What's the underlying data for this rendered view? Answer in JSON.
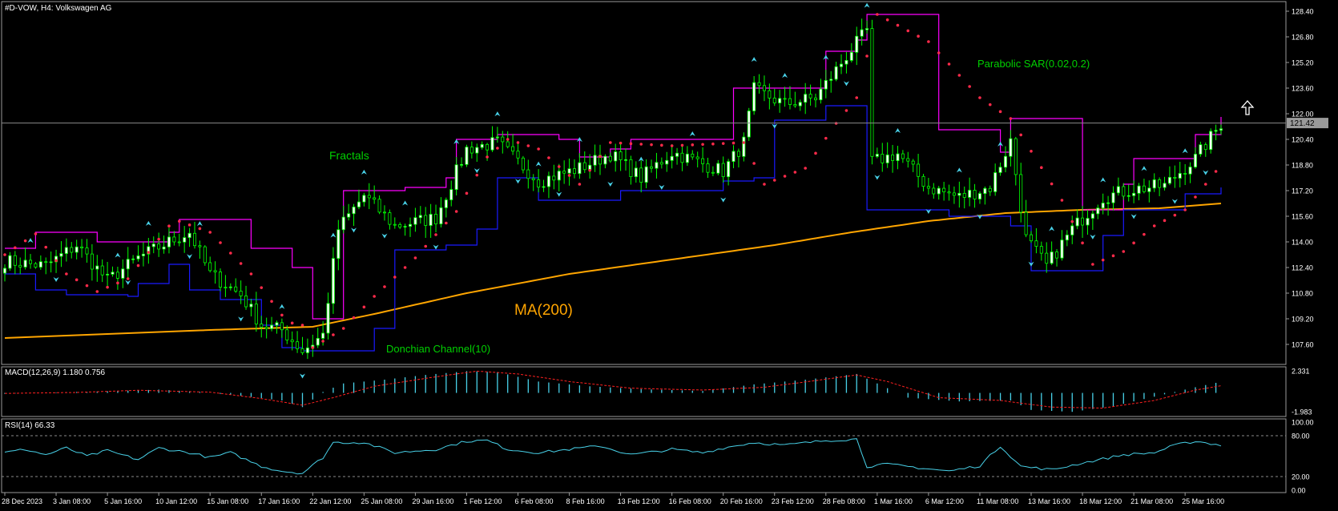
{
  "header": {
    "symbol_title": "#D-VOW, H4:  Volkswagen AG",
    "macd_title": "MACD(12,26,9) 1.180 0.756",
    "rsi_title": "RSI(14) 66.33"
  },
  "annotations": {
    "fractals": "Fractals",
    "donchian": "Donchian Channel(10)",
    "sar": "Parabolic SAR(0.02,0.2)",
    "ma": "MA(200)"
  },
  "colors": {
    "background": "#000000",
    "bull_candle": "#ffffff",
    "bear_candle": "#000000",
    "wick": "#00ff00",
    "donchian_upper": "#ff00ff",
    "donchian_lower": "#1a1aff",
    "sar": "#ff2a4a",
    "ma200": "#ffa500",
    "fractal": "#48d1e8",
    "macd_hist": "#48d1e8",
    "macd_signal": "#ff2020",
    "rsi_line": "#48d1e8",
    "label_green": "#00d000"
  },
  "chart_data": {
    "type": "candlestick",
    "price_axis": {
      "ticks": [
        "128.40",
        "126.80",
        "125.20",
        "123.60",
        "122.00",
        "120.40",
        "118.80",
        "117.20",
        "115.60",
        "114.00",
        "112.40",
        "110.80",
        "109.20",
        "107.60"
      ],
      "ylim": [
        106.2,
        128.9
      ],
      "current_price": "121.42"
    },
    "macd_axis": {
      "ticks": [
        "2.331",
        "-1.983"
      ],
      "ylim": [
        -2.4,
        2.6
      ]
    },
    "rsi_axis": {
      "ticks": [
        "100.00",
        "80.00",
        "20.00",
        "0.00"
      ],
      "levels": [
        80,
        20
      ],
      "ylim": [
        0,
        100
      ]
    },
    "x_ticks": [
      "28 Dec 2023",
      "3 Jan 08:00",
      "5 Jan 16:00",
      "10 Jan 12:00",
      "15 Jan 08:00",
      "17 Jan 16:00",
      "22 Jan 12:00",
      "25 Jan 08:00",
      "29 Jan 16:00",
      "1 Feb 12:00",
      "6 Feb 08:00",
      "8 Feb 16:00",
      "13 Feb 12:00",
      "16 Feb 08:00",
      "20 Feb 16:00",
      "23 Feb 12:00",
      "28 Feb 08:00",
      "1 Mar 16:00",
      "6 Mar 12:00",
      "11 Mar 08:00",
      "13 Mar 16:00",
      "18 Mar 12:00",
      "21 Mar 08:00",
      "25 Mar 16:00"
    ],
    "x_tick_index": [
      0,
      10,
      20,
      30,
      40,
      50,
      60,
      70,
      80,
      90,
      100,
      110,
      120,
      130,
      140,
      150,
      160,
      170,
      180,
      190,
      200,
      210,
      220,
      230
    ],
    "bar_count": 238,
    "price_anchors": [
      [
        0,
        112.8
      ],
      [
        8,
        112.5
      ],
      [
        14,
        113.8
      ],
      [
        20,
        111.6
      ],
      [
        26,
        113.0
      ],
      [
        32,
        114.0
      ],
      [
        36,
        114.6
      ],
      [
        40,
        112.0
      ],
      [
        46,
        110.7
      ],
      [
        50,
        108.8
      ],
      [
        54,
        108.5
      ],
      [
        58,
        107.2
      ],
      [
        62,
        108.2
      ],
      [
        65,
        114.8
      ],
      [
        70,
        116.9
      ],
      [
        76,
        115.0
      ],
      [
        84,
        115.5
      ],
      [
        90,
        119.8
      ],
      [
        96,
        120.2
      ],
      [
        104,
        117.8
      ],
      [
        112,
        118.6
      ],
      [
        118,
        119.5
      ],
      [
        124,
        118.0
      ],
      [
        130,
        119.6
      ],
      [
        140,
        118.4
      ],
      [
        144,
        120.2
      ],
      [
        146,
        123.5
      ],
      [
        152,
        122.6
      ],
      [
        158,
        123.0
      ],
      [
        164,
        125.6
      ],
      [
        168,
        127.2
      ],
      [
        169,
        119.0
      ],
      [
        174,
        119.5
      ],
      [
        180,
        117.4
      ],
      [
        186,
        116.8
      ],
      [
        192,
        117.4
      ],
      [
        196,
        120.3
      ],
      [
        199,
        114.2
      ],
      [
        203,
        112.5
      ],
      [
        208,
        114.8
      ],
      [
        214,
        116.8
      ],
      [
        220,
        117.3
      ],
      [
        226,
        117.5
      ],
      [
        232,
        119.2
      ],
      [
        237,
        121.4
      ]
    ],
    "ma200_anchors": [
      [
        0,
        108.0
      ],
      [
        40,
        108.5
      ],
      [
        60,
        108.7
      ],
      [
        72,
        109.5
      ],
      [
        90,
        110.8
      ],
      [
        110,
        112.0
      ],
      [
        130,
        112.9
      ],
      [
        150,
        113.8
      ],
      [
        165,
        114.6
      ],
      [
        180,
        115.3
      ],
      [
        195,
        115.8
      ],
      [
        210,
        116.0
      ],
      [
        225,
        116.1
      ],
      [
        237,
        116.4
      ]
    ],
    "sar_anchors": [
      [
        0,
        113.2
      ],
      [
        6,
        114.5
      ],
      [
        12,
        112.0
      ],
      [
        18,
        110.9
      ],
      [
        24,
        111.7
      ],
      [
        33,
        115.4
      ],
      [
        40,
        114.6
      ],
      [
        48,
        112.0
      ],
      [
        55,
        109.0
      ],
      [
        58,
        108.8
      ],
      [
        59,
        107.2
      ],
      [
        66,
        108.6
      ],
      [
        72,
        110.6
      ],
      [
        80,
        113.0
      ],
      [
        88,
        115.9
      ],
      [
        94,
        119.3
      ],
      [
        98,
        120.4
      ],
      [
        104,
        119.8
      ],
      [
        112,
        117.6
      ],
      [
        118,
        120.2
      ],
      [
        130,
        120.0
      ],
      [
        144,
        120.2
      ],
      [
        148,
        117.6
      ],
      [
        156,
        118.6
      ],
      [
        162,
        121.4
      ],
      [
        166,
        123.0
      ],
      [
        170,
        128.2
      ],
      [
        180,
        126.5
      ],
      [
        190,
        123.0
      ],
      [
        196,
        121.7
      ],
      [
        206,
        116.6
      ],
      [
        212,
        112.6
      ],
      [
        218,
        113.4
      ],
      [
        224,
        115.0
      ],
      [
        230,
        116.0
      ],
      [
        237,
        118.8
      ]
    ],
    "donchian_upper_anchors": [
      [
        0,
        113.6
      ],
      [
        6,
        114.6
      ],
      [
        16,
        114.6
      ],
      [
        18,
        114.0
      ],
      [
        32,
        114.6
      ],
      [
        34,
        115.4
      ],
      [
        46,
        115.4
      ],
      [
        48,
        113.6
      ],
      [
        56,
        112.4
      ],
      [
        60,
        109.2
      ],
      [
        64,
        109.2
      ],
      [
        66,
        117.2
      ],
      [
        76,
        117.2
      ],
      [
        78,
        117.4
      ],
      [
        86,
        118.0
      ],
      [
        88,
        120.4
      ],
      [
        96,
        120.7
      ],
      [
        108,
        120.4
      ],
      [
        112,
        119.3
      ],
      [
        118,
        119.8
      ],
      [
        122,
        120.4
      ],
      [
        140,
        120.4
      ],
      [
        142,
        123.6
      ],
      [
        150,
        123.6
      ],
      [
        160,
        125.9
      ],
      [
        166,
        126.6
      ],
      [
        168,
        128.2
      ],
      [
        180,
        128.2
      ],
      [
        182,
        121.0
      ],
      [
        190,
        121.0
      ],
      [
        194,
        119.6
      ],
      [
        196,
        121.7
      ],
      [
        208,
        121.7
      ],
      [
        210,
        116.0
      ],
      [
        218,
        117.6
      ],
      [
        220,
        119.2
      ],
      [
        228,
        119.2
      ],
      [
        232,
        120.7
      ],
      [
        237,
        121.8
      ]
    ],
    "donchian_lower_anchors": [
      [
        0,
        112.0
      ],
      [
        6,
        111.0
      ],
      [
        12,
        110.7
      ],
      [
        24,
        110.6
      ],
      [
        26,
        111.4
      ],
      [
        32,
        112.6
      ],
      [
        36,
        111.0
      ],
      [
        42,
        110.4
      ],
      [
        50,
        108.8
      ],
      [
        54,
        107.4
      ],
      [
        58,
        107.2
      ],
      [
        66,
        107.2
      ],
      [
        72,
        108.6
      ],
      [
        76,
        113.5
      ],
      [
        86,
        113.8
      ],
      [
        92,
        114.8
      ],
      [
        96,
        118.0
      ],
      [
        104,
        116.6
      ],
      [
        114,
        116.6
      ],
      [
        120,
        117.2
      ],
      [
        136,
        117.2
      ],
      [
        140,
        117.8
      ],
      [
        146,
        118.0
      ],
      [
        150,
        121.6
      ],
      [
        160,
        122.5
      ],
      [
        168,
        116.0
      ],
      [
        176,
        116.0
      ],
      [
        184,
        115.6
      ],
      [
        190,
        115.6
      ],
      [
        196,
        115.0
      ],
      [
        200,
        112.2
      ],
      [
        210,
        112.2
      ],
      [
        214,
        114.4
      ],
      [
        218,
        116.0
      ],
      [
        226,
        116.0
      ],
      [
        230,
        117.0
      ],
      [
        237,
        117.4
      ]
    ],
    "fractals_up": [
      5,
      22,
      28,
      38,
      54,
      64,
      70,
      78,
      88,
      96,
      104,
      112,
      124,
      134,
      146,
      152,
      160,
      168,
      174,
      186,
      194,
      204,
      214,
      222,
      230
    ],
    "fractals_down": [
      10,
      24,
      36,
      46,
      58,
      68,
      74,
      84,
      92,
      100,
      108,
      118,
      128,
      140,
      150,
      164,
      170,
      180,
      190,
      200,
      212,
      220,
      228,
      234
    ],
    "macd_hist_anchors": [
      [
        0,
        -0.1
      ],
      [
        10,
        0.05
      ],
      [
        22,
        0.2
      ],
      [
        30,
        0.35
      ],
      [
        38,
        0.1
      ],
      [
        46,
        -0.3
      ],
      [
        54,
        -0.8
      ],
      [
        58,
        -1.5
      ],
      [
        62,
        0.1
      ],
      [
        66,
        1.0
      ],
      [
        74,
        1.4
      ],
      [
        82,
        1.9
      ],
      [
        90,
        2.3
      ],
      [
        96,
        2.2
      ],
      [
        104,
        1.2
      ],
      [
        114,
        0.7
      ],
      [
        124,
        0.4
      ],
      [
        136,
        0.2
      ],
      [
        146,
        0.9
      ],
      [
        156,
        1.4
      ],
      [
        166,
        2.0
      ],
      [
        168,
        1.5
      ],
      [
        176,
        -0.5
      ],
      [
        186,
        -0.9
      ],
      [
        196,
        -0.8
      ],
      [
        200,
        -1.8
      ],
      [
        208,
        -2.0
      ],
      [
        216,
        -1.4
      ],
      [
        224,
        -0.4
      ],
      [
        232,
        0.6
      ],
      [
        237,
        1.18
      ]
    ],
    "macd_signal_anchors": [
      [
        0,
        -0.05
      ],
      [
        14,
        0.05
      ],
      [
        26,
        0.28
      ],
      [
        40,
        0.08
      ],
      [
        50,
        -0.6
      ],
      [
        58,
        -1.3
      ],
      [
        64,
        -0.5
      ],
      [
        72,
        0.7
      ],
      [
        84,
        1.7
      ],
      [
        92,
        2.3
      ],
      [
        100,
        2.0
      ],
      [
        110,
        1.2
      ],
      [
        122,
        0.5
      ],
      [
        136,
        0.3
      ],
      [
        148,
        0.6
      ],
      [
        158,
        1.3
      ],
      [
        166,
        1.9
      ],
      [
        172,
        1.2
      ],
      [
        182,
        -0.5
      ],
      [
        194,
        -0.8
      ],
      [
        204,
        -1.5
      ],
      [
        214,
        -1.6
      ],
      [
        224,
        -0.8
      ],
      [
        232,
        0.3
      ],
      [
        237,
        0.756
      ]
    ],
    "rsi_anchors": [
      [
        0,
        55
      ],
      [
        4,
        60
      ],
      [
        8,
        52
      ],
      [
        12,
        62
      ],
      [
        16,
        50
      ],
      [
        20,
        58
      ],
      [
        26,
        45
      ],
      [
        30,
        62
      ],
      [
        36,
        55
      ],
      [
        40,
        48
      ],
      [
        44,
        55
      ],
      [
        50,
        35
      ],
      [
        54,
        28
      ],
      [
        58,
        25
      ],
      [
        62,
        48
      ],
      [
        64,
        70
      ],
      [
        70,
        70
      ],
      [
        76,
        55
      ],
      [
        84,
        60
      ],
      [
        90,
        72
      ],
      [
        94,
        73
      ],
      [
        98,
        60
      ],
      [
        104,
        55
      ],
      [
        110,
        60
      ],
      [
        116,
        65
      ],
      [
        122,
        52
      ],
      [
        130,
        60
      ],
      [
        136,
        55
      ],
      [
        140,
        62
      ],
      [
        146,
        70
      ],
      [
        152,
        66
      ],
      [
        160,
        73
      ],
      [
        166,
        75
      ],
      [
        168,
        35
      ],
      [
        172,
        38
      ],
      [
        178,
        33
      ],
      [
        184,
        28
      ],
      [
        190,
        36
      ],
      [
        194,
        65
      ],
      [
        198,
        35
      ],
      [
        204,
        30
      ],
      [
        210,
        40
      ],
      [
        218,
        52
      ],
      [
        224,
        55
      ],
      [
        228,
        66
      ],
      [
        232,
        72
      ],
      [
        237,
        66
      ]
    ]
  }
}
